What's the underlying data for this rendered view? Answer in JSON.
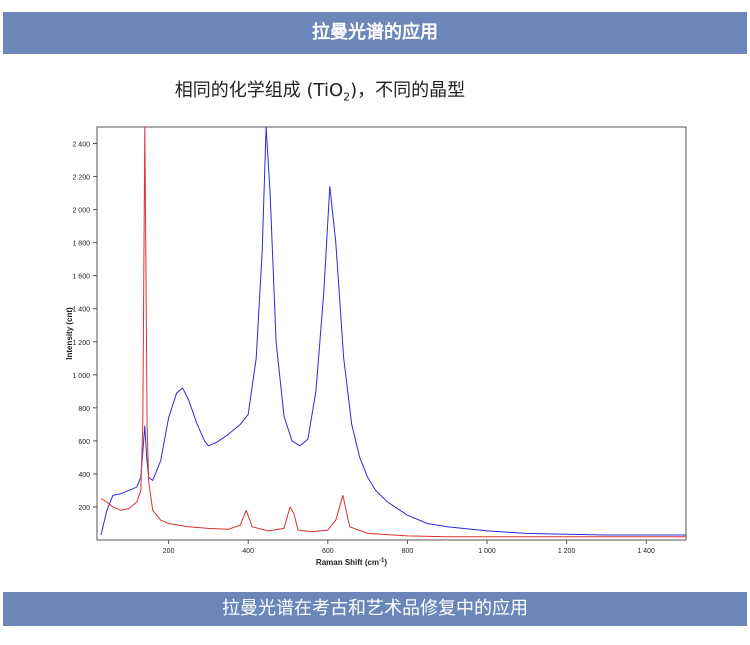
{
  "header": {
    "title": "拉曼光谱的应用"
  },
  "subtitle": {
    "prefix": "相同的化学组成 (TiO",
    "sub": "2",
    "suffix": ")，不同的晶型"
  },
  "footer": {
    "title": "拉曼光谱在考古和艺术品修复中的应用"
  },
  "chart_data": {
    "type": "line",
    "xlabel": "Raman Shift (cm",
    "xlabel_sup": "-1",
    "xlabel_close": ")",
    "ylabel": "Intensity (cnt)",
    "xlim": [
      20,
      1500
    ],
    "ylim": [
      0,
      2500
    ],
    "x_ticks": [
      200,
      400,
      600,
      800,
      1000,
      1200,
      1400
    ],
    "x_tick_labels": [
      "200",
      "400",
      "600",
      "800",
      "1 000",
      "1 200",
      "1 400"
    ],
    "y_ticks": [
      200,
      400,
      600,
      800,
      1000,
      1200,
      1400,
      1600,
      1800,
      2000,
      2200,
      2400
    ],
    "y_tick_labels": [
      "200",
      "400",
      "600",
      "800",
      "1 000",
      "1 200",
      "1 400",
      "1 600",
      "1 800",
      "2 000",
      "2 200",
      "2 400"
    ],
    "series": [
      {
        "color": "#2b2bd6",
        "x": [
          30,
          45,
          60,
          80,
          100,
          120,
          130,
          140,
          145,
          150,
          160,
          180,
          200,
          220,
          235,
          250,
          270,
          290,
          300,
          320,
          350,
          380,
          400,
          420,
          435,
          445,
          455,
          470,
          490,
          510,
          530,
          550,
          570,
          590,
          605,
          620,
          640,
          660,
          680,
          700,
          720,
          750,
          800,
          850,
          900,
          1000,
          1100,
          1200,
          1300,
          1400,
          1500
        ],
        "y": [
          30,
          180,
          270,
          280,
          300,
          320,
          380,
          690,
          500,
          380,
          360,
          480,
          740,
          890,
          920,
          850,
          710,
          600,
          570,
          590,
          640,
          700,
          760,
          1100,
          1750,
          2500,
          2100,
          1200,
          750,
          600,
          570,
          610,
          900,
          1500,
          2140,
          1800,
          1100,
          700,
          500,
          380,
          300,
          230,
          150,
          100,
          80,
          55,
          40,
          35,
          30,
          30,
          30
        ]
      },
      {
        "color": "#e03030",
        "x": [
          30,
          45,
          60,
          80,
          100,
          120,
          130,
          135,
          140,
          143,
          146,
          150,
          160,
          180,
          200,
          250,
          300,
          350,
          380,
          395,
          410,
          450,
          490,
          505,
          515,
          525,
          560,
          600,
          620,
          638,
          655,
          700,
          800,
          900,
          1000,
          1100,
          1200,
          1300,
          1400,
          1500
        ],
        "y": [
          250,
          230,
          200,
          180,
          190,
          230,
          300,
          700,
          2500,
          1600,
          700,
          350,
          180,
          120,
          100,
          80,
          70,
          65,
          90,
          180,
          80,
          55,
          70,
          200,
          160,
          60,
          50,
          60,
          120,
          270,
          80,
          40,
          25,
          20,
          20,
          20,
          20,
          20,
          20,
          20
        ]
      }
    ]
  }
}
